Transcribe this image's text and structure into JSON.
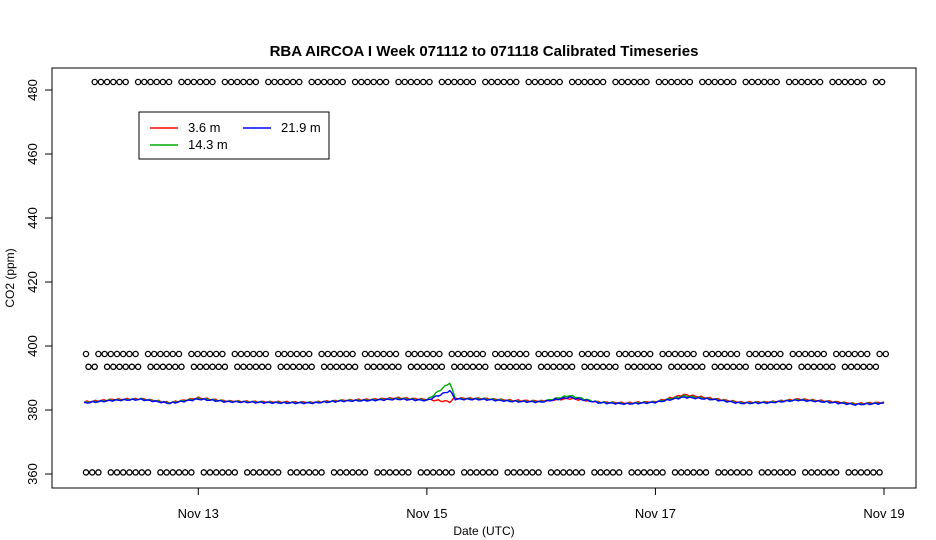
{
  "chart_data": {
    "type": "line",
    "title": "RBA AIRCOA I  Week 071112 to 071118  Calibrated Timeseries",
    "xlabel": "Date (UTC)",
    "ylabel": "CO2 (ppm)",
    "xlim": [
      "2007-11-12",
      "2007-11-19"
    ],
    "ylim": [
      356,
      486
    ],
    "x_ticks": [
      {
        "label": "Nov 13",
        "day": 13
      },
      {
        "label": "Nov 15",
        "day": 15
      },
      {
        "label": "Nov 17",
        "day": 17
      },
      {
        "label": "Nov 19",
        "day": 19
      }
    ],
    "y_ticks": [
      360,
      380,
      400,
      420,
      440,
      460,
      480
    ],
    "grid": false,
    "legend_position": "top-left",
    "series": [
      {
        "name": "3.6 m",
        "color": "#ff0000",
        "day": [
          12.0,
          12.25,
          12.5,
          12.75,
          13.0,
          13.25,
          13.5,
          13.75,
          14.0,
          14.25,
          14.5,
          14.75,
          15.0,
          15.2,
          15.25,
          15.5,
          15.75,
          16.0,
          16.25,
          16.5,
          16.75,
          17.0,
          17.25,
          17.5,
          17.75,
          18.0,
          18.25,
          18.5,
          18.75,
          19.0
        ],
        "co2": [
          382.5,
          383.3,
          383.5,
          382.3,
          383.8,
          382.8,
          382.6,
          382.5,
          382.4,
          383.0,
          383.3,
          383.8,
          383.3,
          382.6,
          383.7,
          383.6,
          383.0,
          382.8,
          383.6,
          382.5,
          382.2,
          382.6,
          384.8,
          383.6,
          382.4,
          382.5,
          383.4,
          382.8,
          382.0,
          382.4
        ]
      },
      {
        "name": "14.3 m",
        "color": "#00aa00",
        "day": [
          12.0,
          12.25,
          12.5,
          12.75,
          13.0,
          13.25,
          13.5,
          13.75,
          14.0,
          14.25,
          14.5,
          14.75,
          15.0,
          15.2,
          15.25,
          15.5,
          15.75,
          16.0,
          16.25,
          16.5,
          16.75,
          17.0,
          17.25,
          17.5,
          17.75,
          18.0,
          18.25,
          18.5,
          18.75,
          19.0
        ],
        "co2": [
          382.3,
          383.1,
          383.4,
          382.2,
          383.6,
          382.7,
          382.5,
          382.3,
          382.3,
          382.9,
          383.1,
          383.6,
          383.1,
          388.5,
          383.5,
          383.5,
          382.8,
          382.6,
          384.5,
          382.4,
          382.0,
          382.5,
          384.4,
          383.4,
          382.2,
          382.4,
          383.2,
          382.6,
          381.8,
          382.2
        ]
      },
      {
        "name": "21.9 m",
        "color": "#0000ff",
        "day": [
          12.0,
          12.25,
          12.5,
          12.75,
          13.0,
          13.25,
          13.5,
          13.75,
          14.0,
          14.25,
          14.5,
          14.75,
          15.0,
          15.2,
          15.25,
          15.5,
          15.75,
          16.0,
          16.25,
          16.5,
          16.75,
          17.0,
          17.25,
          17.5,
          17.75,
          18.0,
          18.25,
          18.5,
          18.75,
          19.0
        ],
        "co2": [
          382.2,
          383.0,
          383.3,
          382.1,
          383.4,
          382.6,
          382.4,
          382.2,
          382.2,
          382.8,
          383.0,
          383.4,
          383.0,
          386.0,
          383.4,
          383.3,
          382.7,
          382.5,
          384.0,
          382.3,
          381.9,
          382.4,
          384.0,
          383.3,
          382.1,
          382.3,
          383.1,
          382.5,
          381.7,
          382.1
        ]
      }
    ],
    "reference_markers": [
      {
        "name": "ref-360",
        "co2": 360.5
      },
      {
        "name": "ref-393",
        "co2": 393.5
      },
      {
        "name": "ref-397",
        "co2": 397.5
      },
      {
        "name": "ref-482",
        "co2": 482.5
      }
    ],
    "legend_columns": [
      [
        "3.6 m",
        "14.3 m"
      ],
      [
        "21.9 m"
      ]
    ]
  }
}
